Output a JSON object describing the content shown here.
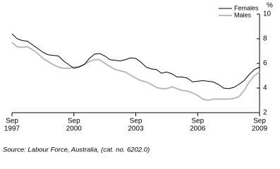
{
  "chart_data": {
    "type": "line",
    "y_label": "%",
    "source": "Source: Labour Force, Australia, (cat. no. 6202.0)",
    "x": [
      "1997-09",
      "1997-12",
      "1998-03",
      "1998-06",
      "1998-09",
      "1998-12",
      "1999-03",
      "1999-06",
      "1999-09",
      "1999-12",
      "2000-03",
      "2000-06",
      "2000-09",
      "2000-12",
      "2001-03",
      "2001-06",
      "2001-09",
      "2001-12",
      "2002-03",
      "2002-06",
      "2002-09",
      "2002-12",
      "2003-03",
      "2003-06",
      "2003-09",
      "2003-12",
      "2004-03",
      "2004-06",
      "2004-09",
      "2004-12",
      "2005-03",
      "2005-06",
      "2005-09",
      "2005-12",
      "2006-03",
      "2006-06",
      "2006-09",
      "2006-12",
      "2007-03",
      "2007-06",
      "2007-09",
      "2007-12",
      "2008-03",
      "2008-06",
      "2008-09",
      "2008-12",
      "2009-03",
      "2009-06",
      "2009-09"
    ],
    "series": [
      {
        "name": "Females",
        "color": "#000000",
        "values": [
          8.4,
          8.0,
          7.85,
          7.8,
          7.5,
          7.2,
          6.9,
          6.7,
          6.65,
          6.6,
          6.2,
          5.9,
          5.6,
          5.7,
          5.9,
          6.4,
          6.75,
          6.8,
          6.6,
          6.3,
          6.25,
          6.2,
          6.3,
          6.45,
          6.4,
          6.1,
          5.7,
          5.55,
          5.5,
          5.2,
          5.3,
          5.15,
          4.9,
          4.9,
          4.8,
          4.5,
          4.55,
          4.6,
          4.55,
          4.5,
          4.3,
          4.0,
          3.95,
          4.05,
          4.3,
          4.6,
          5.1,
          5.5,
          5.7
        ]
      },
      {
        "name": "Males",
        "color": "#bbbbbb",
        "values": [
          7.7,
          7.35,
          7.3,
          7.35,
          7.1,
          6.8,
          6.4,
          6.15,
          5.9,
          5.7,
          5.6,
          5.6,
          5.7,
          5.75,
          5.9,
          6.15,
          6.3,
          6.3,
          6.0,
          5.75,
          5.5,
          5.4,
          5.3,
          5.05,
          4.8,
          4.6,
          4.5,
          4.3,
          4.05,
          3.95,
          3.95,
          4.1,
          3.95,
          3.8,
          3.75,
          3.6,
          3.4,
          3.1,
          3.0,
          3.1,
          3.1,
          3.1,
          3.1,
          3.15,
          3.3,
          3.8,
          4.5,
          5.0,
          5.3
        ]
      }
    ],
    "xlim": [
      "1997-09",
      "2009-09"
    ],
    "xticks": [
      {
        "value": "1997-09",
        "label": [
          "Sep",
          "1997"
        ]
      },
      {
        "value": "2000-09",
        "label": [
          "Sep",
          "2000"
        ]
      },
      {
        "value": "2003-09",
        "label": [
          "Sep",
          "2003"
        ]
      },
      {
        "value": "2006-09",
        "label": [
          "Sep",
          "2006"
        ]
      },
      {
        "value": "2009-09",
        "label": [
          "Sep",
          "2009"
        ]
      }
    ],
    "ylim": [
      2,
      10
    ],
    "yticks": [
      2,
      4,
      6,
      8,
      10
    ],
    "y_axis_side": "right",
    "legend": "top-right"
  }
}
